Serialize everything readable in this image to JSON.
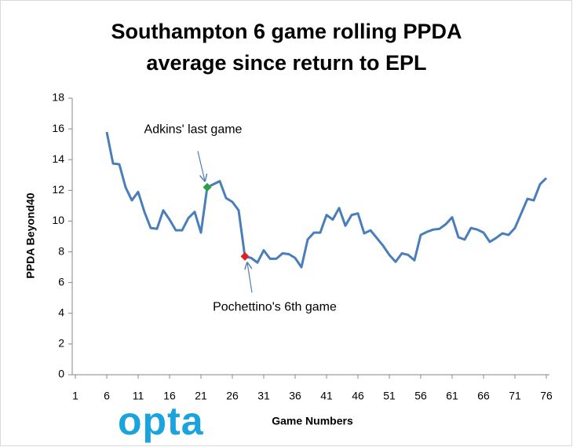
{
  "chart_data": {
    "type": "line",
    "title": [
      "Southampton 6 game rolling PPDA",
      "average since return to EPL"
    ],
    "x_label": "Game Numbers",
    "y_label": "PPDA Beyond40",
    "x": [
      6,
      7,
      8,
      9,
      10,
      11,
      12,
      13,
      14,
      15,
      16,
      17,
      18,
      19,
      20,
      21,
      22,
      23,
      24,
      25,
      26,
      27,
      28,
      29,
      30,
      31,
      32,
      33,
      34,
      35,
      36,
      37,
      38,
      39,
      40,
      41,
      42,
      43,
      44,
      45,
      46,
      47,
      48,
      49,
      50,
      51,
      52,
      53,
      54,
      55,
      56,
      57,
      58,
      59,
      60,
      61,
      62,
      63,
      64,
      65,
      66,
      67,
      68,
      69,
      70,
      71,
      72,
      73,
      74,
      75,
      76
    ],
    "series": [
      {
        "name": "PPDA",
        "color": "#4a7ebb",
        "values": [
          15.8,
          13.75,
          13.7,
          12.2,
          11.35,
          11.9,
          10.6,
          9.55,
          9.5,
          10.7,
          10.1,
          9.4,
          9.4,
          10.2,
          10.6,
          9.25,
          12.2,
          12.4,
          12.6,
          11.5,
          11.25,
          10.7,
          7.7,
          7.6,
          7.3,
          8.1,
          7.55,
          7.55,
          7.9,
          7.85,
          7.6,
          7.0,
          8.8,
          9.25,
          9.25,
          10.4,
          10.1,
          10.85,
          9.7,
          10.4,
          10.5,
          9.2,
          9.4,
          8.9,
          8.4,
          7.8,
          7.35,
          7.9,
          7.8,
          7.45,
          9.1,
          9.3,
          9.45,
          9.5,
          9.8,
          10.25,
          8.95,
          8.8,
          9.55,
          9.45,
          9.25,
          8.65,
          8.9,
          9.2,
          9.1,
          9.55,
          10.5,
          11.45,
          11.35,
          12.4,
          12.8
        ]
      }
    ],
    "annotations": [
      {
        "text": "Adkins' last game",
        "x": 22,
        "marker_color": "#2e9e44"
      },
      {
        "text": "Pochettino's 6th game",
        "x": 28,
        "marker_color": "#e0202a"
      }
    ],
    "xlim": [
      0.5,
      76.5
    ],
    "xticks": [
      1,
      6,
      11,
      16,
      21,
      26,
      31,
      36,
      41,
      46,
      51,
      56,
      61,
      66,
      71,
      76
    ],
    "ylim": [
      0,
      18
    ],
    "yticks": [
      0,
      2,
      4,
      6,
      8,
      10,
      12,
      14,
      16,
      18
    ],
    "grid": false,
    "logo": "opta"
  }
}
